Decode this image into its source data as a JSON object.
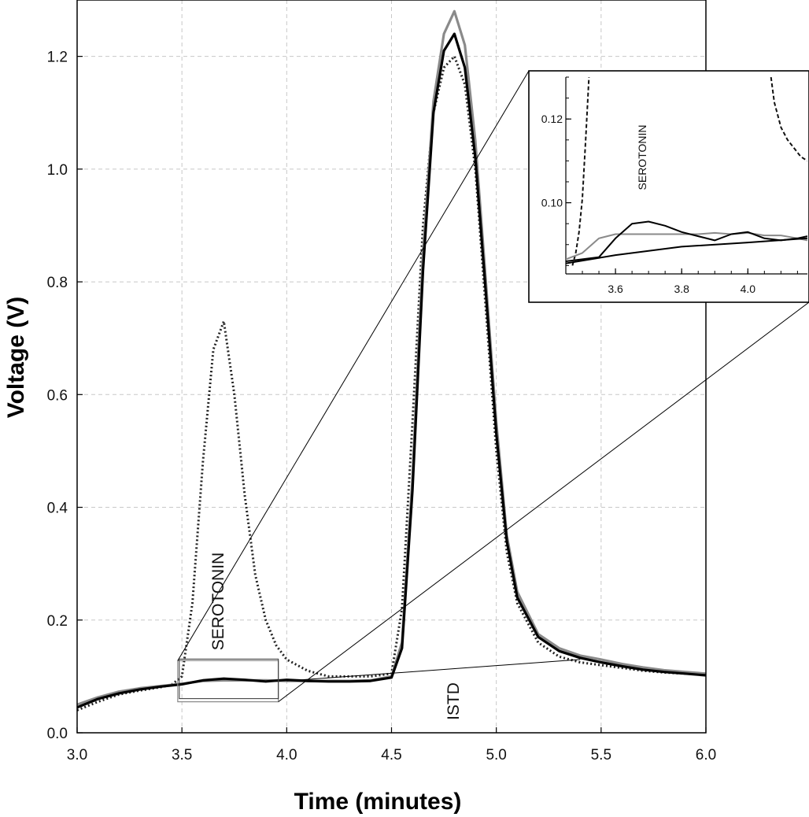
{
  "chart_data": {
    "type": "line",
    "xlabel": "Time (minutes)",
    "ylabel": "Voltage (V)",
    "xlim": [
      3.0,
      6.0
    ],
    "ylim": [
      0.0,
      1.3
    ],
    "xticks": [
      "3.0",
      "3.5",
      "4.0",
      "4.5",
      "5.0",
      "5.5",
      "6.0"
    ],
    "yticks": [
      "0.0",
      "0.2",
      "0.4",
      "0.6",
      "0.8",
      "1.0",
      "1.2"
    ],
    "grid": true,
    "annotations": {
      "serotonin": "SEROTONIN",
      "istd": "ISTD"
    },
    "series": [
      {
        "style": "dotted",
        "color": "#222222",
        "x": [
          3.0,
          3.1,
          3.2,
          3.3,
          3.4,
          3.45,
          3.5,
          3.55,
          3.6,
          3.65,
          3.7,
          3.75,
          3.8,
          3.85,
          3.9,
          3.95,
          4.0,
          4.1,
          4.2,
          4.3,
          4.4,
          4.5,
          4.55,
          4.6,
          4.65,
          4.7,
          4.75,
          4.8,
          4.85,
          4.9,
          4.95,
          5.0,
          5.05,
          5.1,
          5.2,
          5.3,
          5.4,
          5.5,
          5.6,
          5.7,
          5.8,
          5.9,
          6.0
        ],
        "y": [
          0.04,
          0.055,
          0.068,
          0.075,
          0.081,
          0.085,
          0.1,
          0.23,
          0.48,
          0.68,
          0.73,
          0.6,
          0.42,
          0.28,
          0.2,
          0.155,
          0.13,
          0.11,
          0.1,
          0.1,
          0.1,
          0.105,
          0.22,
          0.55,
          0.9,
          1.1,
          1.18,
          1.2,
          1.15,
          1.0,
          0.75,
          0.5,
          0.32,
          0.23,
          0.16,
          0.135,
          0.125,
          0.12,
          0.115,
          0.11,
          0.107,
          0.105,
          0.103
        ]
      },
      {
        "style": "solid",
        "color": "#8a8a8a",
        "x": [
          3.0,
          3.1,
          3.2,
          3.3,
          3.4,
          3.5,
          3.6,
          3.7,
          3.8,
          3.9,
          4.0,
          4.1,
          4.2,
          4.3,
          4.4,
          4.5,
          4.55,
          4.6,
          4.65,
          4.7,
          4.75,
          4.8,
          4.85,
          4.9,
          4.95,
          5.0,
          5.05,
          5.1,
          5.2,
          5.3,
          5.4,
          5.5,
          5.6,
          5.7,
          5.8,
          5.9,
          6.0
        ],
        "y": [
          0.05,
          0.063,
          0.073,
          0.079,
          0.083,
          0.087,
          0.092,
          0.093,
          0.093,
          0.093,
          0.092,
          0.092,
          0.092,
          0.092,
          0.093,
          0.1,
          0.16,
          0.45,
          0.85,
          1.12,
          1.24,
          1.28,
          1.22,
          1.05,
          0.8,
          0.55,
          0.35,
          0.25,
          0.175,
          0.15,
          0.137,
          0.13,
          0.122,
          0.116,
          0.111,
          0.108,
          0.105
        ]
      },
      {
        "style": "solid",
        "color": "#000000",
        "x": [
          3.0,
          3.1,
          3.2,
          3.3,
          3.4,
          3.5,
          3.6,
          3.7,
          3.8,
          3.9,
          4.0,
          4.1,
          4.2,
          4.3,
          4.4,
          4.5,
          4.55,
          4.6,
          4.65,
          4.7,
          4.75,
          4.8,
          4.85,
          4.9,
          4.95,
          5.0,
          5.05,
          5.1,
          5.2,
          5.3,
          5.4,
          5.5,
          5.6,
          5.7,
          5.8,
          5.9,
          6.0
        ],
        "y": [
          0.045,
          0.06,
          0.07,
          0.077,
          0.082,
          0.086,
          0.093,
          0.096,
          0.094,
          0.091,
          0.094,
          0.092,
          0.091,
          0.091,
          0.092,
          0.098,
          0.15,
          0.43,
          0.82,
          1.1,
          1.21,
          1.24,
          1.18,
          1.02,
          0.78,
          0.53,
          0.34,
          0.24,
          0.17,
          0.145,
          0.133,
          0.125,
          0.118,
          0.112,
          0.108,
          0.105,
          0.102
        ]
      }
    ],
    "inset": {
      "xlim": [
        3.45,
        4.18
      ],
      "ylim": [
        0.083,
        0.13
      ],
      "xticks": [
        "3.6",
        "3.8",
        "4.0"
      ],
      "yticks": [
        "0.10",
        "0.12"
      ],
      "annotation": "SEROTONIN",
      "zoom_region": {
        "x": [
          3.48,
          3.96
        ],
        "y": [
          0.055,
          0.128
        ]
      },
      "series": [
        {
          "style": "dashed",
          "color": "#111111",
          "x": [
            3.47,
            3.48,
            3.49,
            3.5,
            3.51,
            3.52
          ],
          "y": [
            0.085,
            0.088,
            0.093,
            0.101,
            0.115,
            0.13
          ]
        },
        {
          "style": "dashed",
          "color": "#111111",
          "x": [
            4.07,
            4.08,
            4.1,
            4.12,
            4.14,
            4.16,
            4.18
          ],
          "y": [
            0.13,
            0.124,
            0.118,
            0.115,
            0.113,
            0.111,
            0.11
          ]
        },
        {
          "style": "solid",
          "color": "#8a8a8a",
          "x": [
            3.45,
            3.5,
            3.55,
            3.6,
            3.7,
            3.8,
            3.85,
            3.9,
            3.95,
            4.0,
            4.05,
            4.1,
            4.15,
            4.18
          ],
          "y": [
            0.0865,
            0.088,
            0.0915,
            0.0925,
            0.0925,
            0.0925,
            0.0925,
            0.0928,
            0.0925,
            0.0928,
            0.0922,
            0.0922,
            0.0915,
            0.091
          ]
        },
        {
          "style": "solid",
          "color": "#000000",
          "x": [
            3.45,
            3.5,
            3.55,
            3.6,
            3.65,
            3.7,
            3.75,
            3.8,
            3.85,
            3.9,
            3.95,
            4.0,
            4.05,
            4.1,
            4.15,
            4.18
          ],
          "y": [
            0.086,
            0.0865,
            0.087,
            0.0915,
            0.095,
            0.0955,
            0.0945,
            0.093,
            0.092,
            0.091,
            0.0925,
            0.093,
            0.0915,
            0.091,
            0.0915,
            0.092
          ]
        },
        {
          "style": "solid",
          "color": "#000000",
          "x": [
            3.45,
            3.6,
            3.8,
            4.0,
            4.18
          ],
          "y": [
            0.0855,
            0.0875,
            0.0895,
            0.0905,
            0.0915
          ]
        }
      ]
    }
  }
}
